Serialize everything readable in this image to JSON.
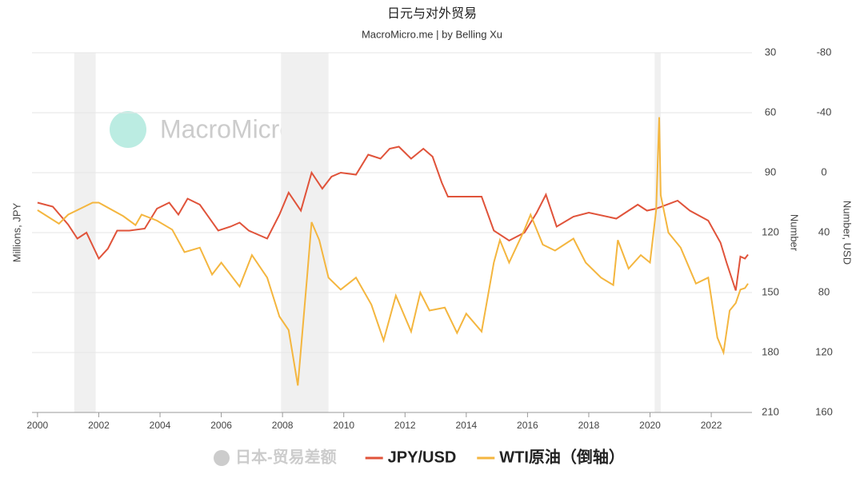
{
  "chart_data": {
    "type": "line",
    "title": "日元与对外贸易",
    "subtitle": "MacroMicro.me | by Belling Xu",
    "watermark": "MacroMicro",
    "ylabel_left": "Millions, JPY",
    "ylabel": "Number",
    "y2label": "Number, USD",
    "xlim": [
      1999.82,
      2023.33
    ],
    "xticks": [
      2000,
      2002,
      2004,
      2006,
      2008,
      2010,
      2012,
      2014,
      2016,
      2018,
      2020,
      2022
    ],
    "ylim": [
      30,
      210
    ],
    "yticks": [
      30,
      60,
      90,
      120,
      150,
      180,
      210
    ],
    "yreverse": true,
    "y2lim": [
      -80,
      160
    ],
    "y2ticks": [
      -80,
      -40,
      0,
      40,
      80,
      120,
      160
    ],
    "y2reverse": true,
    "grid": true,
    "legend": "bottom",
    "recessions": [
      [
        2001.2,
        2001.9
      ],
      [
        2007.95,
        2009.5
      ],
      [
        2020.15,
        2020.35
      ]
    ],
    "hidden_series": [
      {
        "name": "日本-贸易差额",
        "color": "#cccccc"
      }
    ],
    "series": [
      {
        "name": "JPY/USD",
        "color": "#e0533a",
        "axis": "y",
        "x": [
          2000.0,
          2000.5,
          2001.0,
          2001.3,
          2001.6,
          2002.0,
          2002.3,
          2002.6,
          2003.0,
          2003.5,
          2003.9,
          2004.3,
          2004.6,
          2004.9,
          2005.3,
          2005.9,
          2006.3,
          2006.6,
          2006.9,
          2007.5,
          2007.9,
          2008.2,
          2008.6,
          2008.95,
          2009.3,
          2009.6,
          2009.9,
          2010.4,
          2010.8,
          2011.2,
          2011.5,
          2011.8,
          2012.2,
          2012.6,
          2012.9,
          2013.2,
          2013.4,
          2013.9,
          2014.5,
          2014.9,
          2015.4,
          2015.9,
          2016.3,
          2016.6,
          2016.95,
          2017.5,
          2018.0,
          2018.9,
          2019.6,
          2019.9,
          2020.2,
          2020.9,
          2021.3,
          2021.9,
          2022.3,
          2022.5,
          2022.8,
          2022.95,
          2023.1,
          2023.2
        ],
        "values": [
          105,
          107,
          116,
          123,
          120,
          133,
          128,
          119,
          119,
          118,
          108,
          105,
          111,
          103,
          106,
          119,
          117,
          115,
          119,
          123,
          111,
          100,
          109,
          90,
          98,
          92,
          90,
          91,
          81,
          83,
          78,
          77,
          83,
          78,
          82,
          95,
          102,
          102,
          102,
          119,
          124,
          120,
          110,
          101,
          117,
          112,
          110,
          113,
          106,
          109,
          108,
          104,
          109,
          114,
          125,
          135,
          149,
          132,
          133,
          131
        ]
      },
      {
        "name": "WTI原油（倒轴）",
        "color": "#f4b63f",
        "axis": "y2",
        "x": [
          2000.0,
          2000.7,
          2001.0,
          2001.8,
          2002.0,
          2002.8,
          2003.2,
          2003.4,
          2003.9,
          2004.4,
          2004.8,
          2005.3,
          2005.7,
          2006.0,
          2006.6,
          2007.0,
          2007.5,
          2007.9,
          2008.2,
          2008.5,
          2008.8,
          2008.95,
          2009.2,
          2009.5,
          2009.9,
          2010.4,
          2010.9,
          2011.3,
          2011.7,
          2012.2,
          2012.5,
          2012.8,
          2013.3,
          2013.7,
          2014.0,
          2014.5,
          2014.9,
          2015.1,
          2015.4,
          2015.9,
          2016.1,
          2016.5,
          2016.9,
          2017.5,
          2017.9,
          2018.4,
          2018.8,
          2018.95,
          2019.3,
          2019.7,
          2020.0,
          2020.2,
          2020.3,
          2020.35,
          2020.6,
          2021.0,
          2021.5,
          2021.9,
          2022.2,
          2022.4,
          2022.6,
          2022.8,
          2022.95,
          2023.1,
          2023.2
        ],
        "values": [
          25,
          34,
          28,
          20,
          20,
          29,
          35,
          28,
          32,
          38,
          53,
          50,
          68,
          60,
          76,
          55,
          70,
          96,
          105,
          142,
          70,
          33,
          45,
          70,
          78,
          70,
          88,
          112,
          82,
          106,
          80,
          92,
          90,
          107,
          94,
          106,
          60,
          45,
          60,
          38,
          28,
          48,
          52,
          44,
          60,
          70,
          75,
          45,
          64,
          55,
          60,
          25,
          -37,
          15,
          40,
          50,
          74,
          70,
          110,
          120,
          92,
          87,
          78,
          77,
          74
        ]
      }
    ]
  }
}
